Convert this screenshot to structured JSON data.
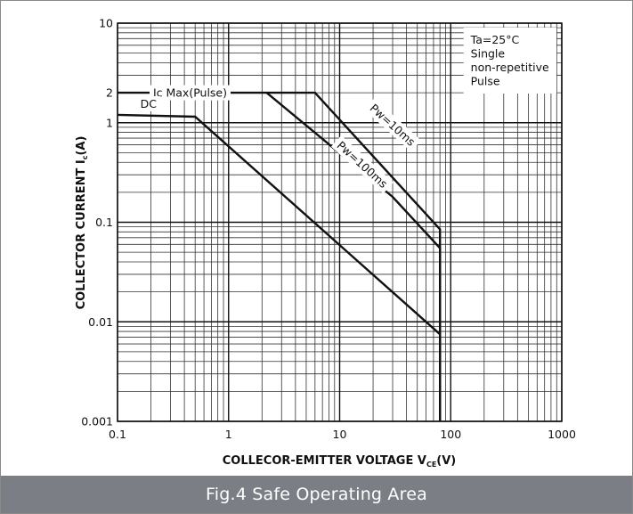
{
  "caption": "Fig.4  Safe Operating Area",
  "chart_data": {
    "type": "line",
    "xscale": "log",
    "yscale": "log",
    "xlim": [
      0.1,
      1000
    ],
    "ylim": [
      0.001,
      10
    ],
    "grid": true,
    "xlabel": {
      "main": "COLLECOR-EMITTER VOLTAGE  V",
      "sub": "CE",
      "tail": "(V)"
    },
    "ylabel": {
      "main": "COLLECTOR CURRENT  I",
      "sub": "c",
      "tail": "(A)"
    },
    "x_ticks": [
      {
        "value": 0.1,
        "label": "0.1"
      },
      {
        "value": 1,
        "label": "1"
      },
      {
        "value": 10,
        "label": "10"
      },
      {
        "value": 100,
        "label": "100"
      },
      {
        "value": 1000,
        "label": "1000"
      }
    ],
    "y_ticks": [
      {
        "value": 0.001,
        "label": "0.001"
      },
      {
        "value": 0.01,
        "label": "0.01"
      },
      {
        "value": 0.1,
        "label": "0.1"
      },
      {
        "value": 1,
        "label": "1"
      },
      {
        "value": 2,
        "label": "2"
      },
      {
        "value": 10,
        "label": "10"
      }
    ],
    "series": [
      {
        "name": "Pw=10ms",
        "points": [
          [
            0.1,
            2
          ],
          [
            6,
            2
          ],
          [
            80,
            0.085
          ],
          [
            80,
            0.001
          ]
        ]
      },
      {
        "name": "Pw=100ms",
        "points": [
          [
            2.2,
            2
          ],
          [
            30,
            0.18
          ],
          [
            80,
            0.055
          ],
          [
            80,
            0.001
          ]
        ]
      },
      {
        "name": "DC",
        "points": [
          [
            0.1,
            1.2
          ],
          [
            0.5,
            1.15
          ],
          [
            80,
            0.0075
          ],
          [
            80,
            0.001
          ]
        ]
      }
    ],
    "annotations": [
      {
        "id": "ic-max",
        "text": "Ic Max(Pulse)",
        "x": 0.45,
        "y": 2
      },
      {
        "id": "dc",
        "text": "DC",
        "x": 0.19,
        "y": 1.55
      },
      {
        "id": "pw10",
        "text": "Pw=10ms",
        "x": 30,
        "y": 0.95,
        "angle": 42
      },
      {
        "id": "pw100",
        "text": "Pw=100ms",
        "x": 16,
        "y": 0.38,
        "angle": 42
      }
    ],
    "legend_box": {
      "position": "top-right",
      "lines": [
        "Ta=25°C",
        "Single",
        "non-repetitive",
        " Pulse"
      ]
    }
  }
}
